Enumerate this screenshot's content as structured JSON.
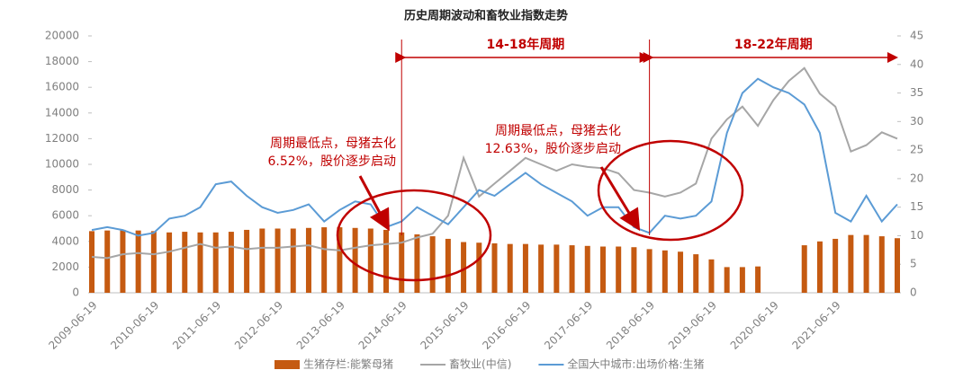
{
  "chart_data": {
    "type": "combo",
    "title": "历史周期波动和畜牧业指数走势",
    "categories": [
      "2009-06-19",
      null,
      null,
      null,
      "2010-06-19",
      null,
      null,
      null,
      "2011-06-19",
      null,
      null,
      null,
      "2012-06-19",
      null,
      null,
      null,
      "2013-06-19",
      null,
      null,
      null,
      "2014-06-19",
      null,
      null,
      null,
      "2015-06-19",
      null,
      null,
      null,
      "2016-06-19",
      null,
      null,
      null,
      "2017-06-19",
      null,
      null,
      null,
      "2018-06-19",
      null,
      null,
      null,
      "2019-06-19",
      null,
      null,
      null,
      "2020-06-19",
      null,
      null,
      null,
      "2021-06-19",
      null,
      null,
      null,
      null
    ],
    "series": [
      {
        "name": "生猪存栏:能繁母猪",
        "type": "bar",
        "color": "#c55a11",
        "axis": "y",
        "values": [
          4800,
          4850,
          4900,
          4850,
          4800,
          4700,
          4750,
          4700,
          4700,
          4750,
          4900,
          5000,
          5000,
          5000,
          5050,
          5100,
          5100,
          5050,
          5000,
          4900,
          4700,
          4550,
          4400,
          4200,
          3950,
          3900,
          3850,
          3800,
          3800,
          3750,
          3750,
          3700,
          3650,
          3600,
          3600,
          3550,
          3400,
          3300,
          3200,
          3000,
          2600,
          2000,
          2000,
          2050,
          null,
          null,
          3700,
          4000,
          4200,
          4500,
          4500,
          4400,
          4250
        ]
      },
      {
        "name": "畜牧业(中信)",
        "type": "line",
        "color": "#a6a6a6",
        "axis": "y",
        "values": [
          2800,
          2700,
          3000,
          3100,
          3000,
          3200,
          3500,
          3800,
          3500,
          3600,
          3400,
          3500,
          3500,
          3600,
          3700,
          3400,
          3300,
          3500,
          3700,
          3800,
          3900,
          4300,
          4600,
          6000,
          10500,
          7500,
          8500,
          9500,
          10500,
          10000,
          9500,
          10000,
          9800,
          9700,
          9300,
          8000,
          7800,
          7500,
          7800,
          8500,
          12000,
          13500,
          14500,
          13000,
          15000,
          16500,
          17500,
          15500,
          14500,
          11000,
          11500,
          12500,
          12000
        ]
      },
      {
        "name": "全国大中城市:出场价格:生猪",
        "type": "line",
        "color": "#5b9bd5",
        "axis": "y2",
        "values": [
          11,
          11.5,
          11,
          10,
          10.5,
          13,
          13.5,
          15,
          19,
          19.5,
          17,
          15,
          14,
          14.5,
          15.5,
          12.5,
          14.5,
          16,
          15.5,
          11.5,
          12.5,
          15,
          13.5,
          12,
          15,
          18,
          17,
          19,
          21,
          19,
          17.5,
          16,
          13.5,
          15,
          15,
          11.5,
          10.5,
          13.5,
          13,
          13.5,
          16,
          28,
          35,
          37.5,
          36,
          35,
          33,
          28,
          14,
          12.5,
          17,
          12.5,
          15.5
        ]
      }
    ],
    "ylim": [
      0,
      20000
    ],
    "yticks": [
      0,
      2000,
      4000,
      6000,
      8000,
      10000,
      12000,
      14000,
      16000,
      18000,
      20000
    ],
    "y2lim": [
      0,
      45
    ],
    "y2ticks": [
      0,
      5,
      10,
      15,
      20,
      25,
      30,
      35,
      40,
      45
    ],
    "period_labels": [
      "14-18年周期",
      "18-22年周期"
    ],
    "notes": [
      [
        "周期最低点，母猪去化",
        "6.52%，股价逐步启动"
      ],
      [
        "周期最低点，母猪去化",
        "12.63%，股价逐步启动"
      ]
    ]
  }
}
